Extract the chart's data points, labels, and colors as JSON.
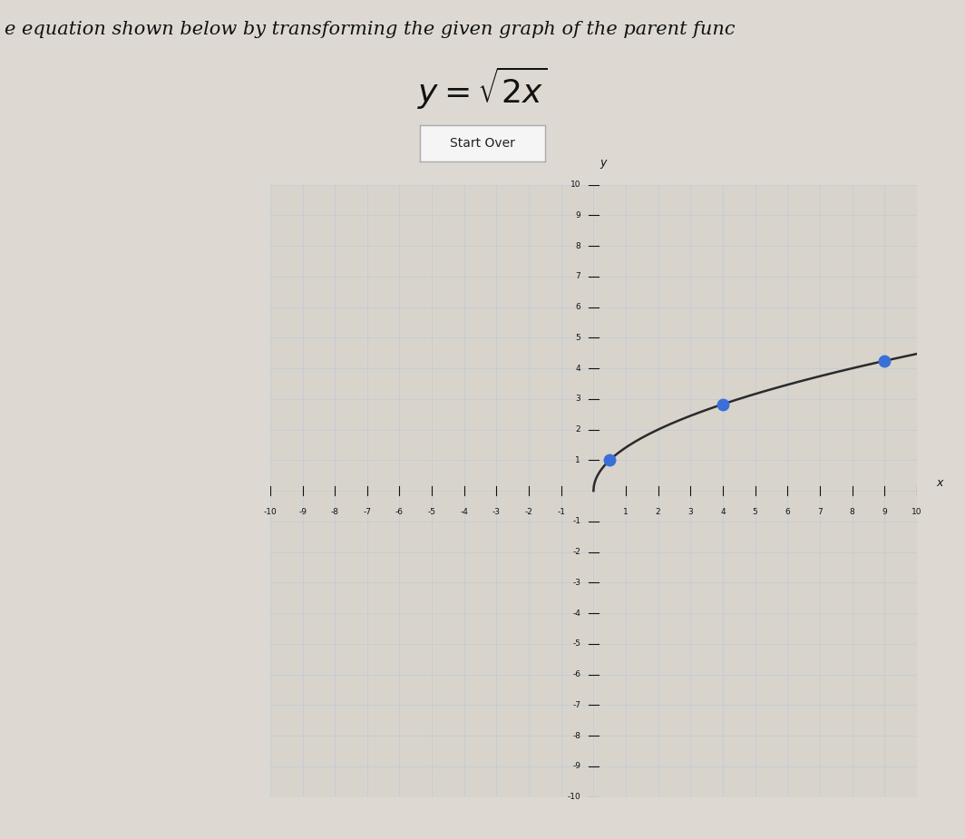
{
  "title_text": "e equation shown below by transforming the given graph of the parent func",
  "background_color": "#ddd9d2",
  "graph_bg_color": "#d8d4cc",
  "grid_color": "#b8c8d8",
  "axis_color": "#111111",
  "curve_color": "#2a2a2a",
  "dot_color": "#3a6fd8",
  "dot_points": [
    [
      0.5,
      1.0
    ],
    [
      4.0,
      2.8284
    ],
    [
      9.0,
      4.2426
    ]
  ],
  "xlim": [
    -10,
    10
  ],
  "ylim": [
    -10,
    10
  ],
  "tick_fontsize": 6.5,
  "xlabel": "x",
  "ylabel": "y",
  "button_text": "Start Over",
  "button_color": "#f5f5f5",
  "button_border": "#aaaaaa",
  "title_fontsize": 15,
  "eq_fontsize": 26,
  "button_fontsize": 10
}
